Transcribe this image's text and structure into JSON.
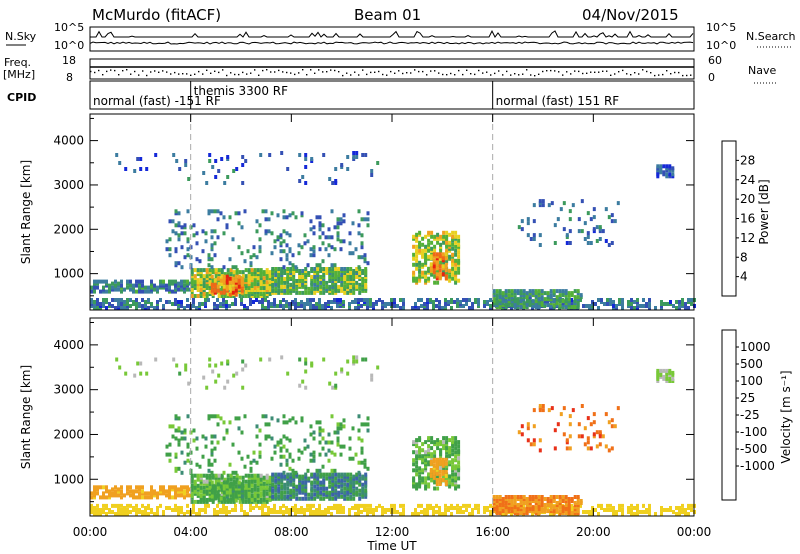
{
  "header": {
    "station": "McMurdo (fitACF)",
    "beam": "Beam 01",
    "date": "04/Nov/2015"
  },
  "noise_panel": {
    "left_label": "N.Sky",
    "left_ticks": [
      "10^5",
      "10^0"
    ],
    "right_label": "N.Search",
    "right_ticks": [
      "10^5",
      "10^0"
    ]
  },
  "freq_panel": {
    "left_label_1": "Freq.",
    "left_label_2": "[MHz]",
    "left_ticks": [
      "18",
      "8"
    ],
    "right_label": "Nave",
    "right_ticks": [
      "60",
      "0"
    ]
  },
  "cpid_panel": {
    "label": "CPID",
    "segments": [
      {
        "label": "normal (fast) -151 RF",
        "start_hour": 0
      },
      {
        "label": "themis 3300 RF",
        "start_hour": 4
      },
      {
        "label": "normal (fast) 151 RF",
        "start_hour": 16
      }
    ]
  },
  "power_panel": {
    "ylabel": "Slant Range [km]",
    "colorbar_label": "Power [dB]",
    "colorbar_ticks": [
      "4",
      "8",
      "12",
      "16",
      "20",
      "24",
      "28"
    ],
    "colors": [
      "#1428d8",
      "#3450b4",
      "#3c7ca0",
      "#3c9a5c",
      "#54b038",
      "#e8d020",
      "#f0a020",
      "#f06818",
      "#e82010"
    ]
  },
  "velocity_panel": {
    "ylabel": "Slant Range [km]",
    "colorbar_label": "Velocity [m s⁻¹]",
    "colorbar_ticks": [
      "1000",
      "500",
      "100",
      "25",
      "-25",
      "-100",
      "-500",
      "-1000"
    ],
    "colors": [
      "#1830c0",
      "#3c64a8",
      "#3c8c74",
      "#40a048",
      "#78c838",
      "#b8b8b8",
      "#f0d020",
      "#f0a020",
      "#f07018",
      "#e83018"
    ]
  },
  "xaxis": {
    "label": "Time UT",
    "ticks": [
      "00:00",
      "04:00",
      "08:00",
      "12:00",
      "16:00",
      "20:00",
      "00:00"
    ]
  },
  "chart_data": {
    "type": "heatmap",
    "title": "McMurdo (fitACF) Beam 01 04/Nov/2015",
    "xlabel": "Time UT",
    "ylabel": "Slant Range [km]",
    "xlim": [
      0,
      24
    ],
    "ylim": [
      180,
      4600
    ],
    "yticks": [
      1000,
      2000,
      3000,
      4000
    ],
    "mode_change_hours": [
      4,
      16
    ],
    "power_scale": {
      "label": "Power [dB]",
      "range": [
        0,
        32
      ],
      "ticks": [
        4,
        8,
        12,
        16,
        20,
        24,
        28
      ]
    },
    "velocity_scale": {
      "label": "Velocity [m s⁻¹]",
      "ticks": [
        1000,
        500,
        100,
        25,
        -25,
        -100,
        -500,
        -1000
      ]
    },
    "echo_regions": [
      {
        "t0": 0.0,
        "t1": 4.0,
        "r0": 550,
        "r1": 800,
        "power": 10,
        "velocity": -150,
        "density": 0.55
      },
      {
        "t0": 0.0,
        "t1": 24.0,
        "r0": 180,
        "r1": 380,
        "power": 8,
        "velocity": -60,
        "density": 0.45
      },
      {
        "t0": 4.0,
        "t1": 7.2,
        "r0": 450,
        "r1": 1050,
        "power": 17,
        "velocity": 120,
        "density": 0.8
      },
      {
        "t0": 4.8,
        "t1": 6.0,
        "r0": 480,
        "r1": 900,
        "power": 25,
        "velocity": 200,
        "density": 0.6
      },
      {
        "t0": 7.2,
        "t1": 11.0,
        "r0": 520,
        "r1": 1080,
        "power": 15,
        "velocity": 400,
        "density": 0.75
      },
      {
        "t0": 3.0,
        "t1": 11.0,
        "r0": 1100,
        "r1": 2400,
        "power": 9,
        "velocity": 200,
        "density": 0.12
      },
      {
        "t0": 12.8,
        "t1": 14.6,
        "r0": 750,
        "r1": 1900,
        "power": 18,
        "velocity": 100,
        "density": 0.55
      },
      {
        "t0": 13.5,
        "t1": 14.2,
        "r0": 850,
        "r1": 1400,
        "power": 24,
        "velocity": -150,
        "density": 0.5
      },
      {
        "t0": 16.0,
        "t1": 19.5,
        "r0": 200,
        "r1": 600,
        "power": 12,
        "velocity": -300,
        "density": 0.7
      },
      {
        "t0": 17.0,
        "t1": 21.0,
        "r0": 1600,
        "r1": 2600,
        "power": 8,
        "velocity": -400,
        "density": 0.08
      },
      {
        "t0": 22.5,
        "t1": 23.2,
        "r0": 3150,
        "r1": 3400,
        "power": 6,
        "velocity": 25,
        "density": 0.6
      },
      {
        "t0": 1.0,
        "t1": 11.5,
        "r0": 3000,
        "r1": 3700,
        "power": 6,
        "velocity": 50,
        "density": 0.04
      }
    ]
  }
}
